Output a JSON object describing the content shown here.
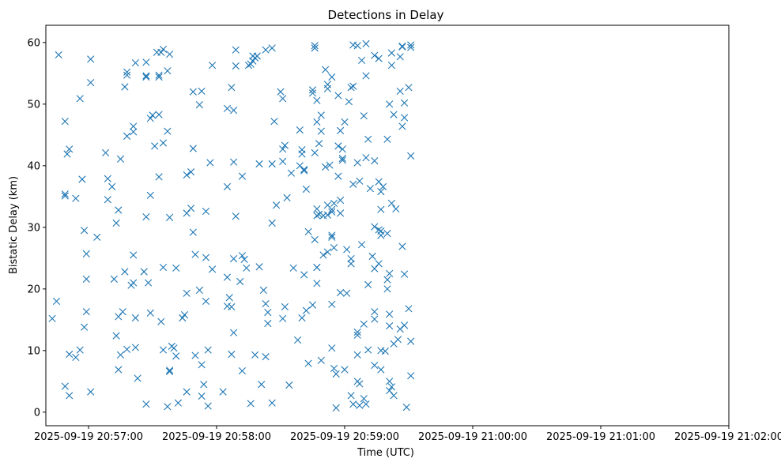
{
  "chart_data": {
    "type": "scatter",
    "title": "Detections in Delay",
    "xlabel": "Time (UTC)",
    "ylabel": "Bistatic Delay (km)",
    "x_tick_labels": [
      "2025-09-19 20:57:00",
      "2025-09-19 20:58:00",
      "2025-09-19 20:59:00",
      "2025-09-19 21:00:00",
      "2025-09-19 21:01:00",
      "2025-09-19 21:02:00"
    ],
    "x_ticks": [
      "20:57:00",
      "20:58:00",
      "20:59:00",
      "21:00:00",
      "21:01:00",
      "21:02:00"
    ],
    "xlim": [
      "20:56:40",
      "21:02:00"
    ],
    "y_ticks": [
      0,
      10,
      20,
      30,
      40,
      50,
      60
    ],
    "ylim": [
      -2.2,
      62.8
    ],
    "grid": false,
    "marker": "x",
    "color": "#1f77b4",
    "points": [
      [
        "20:56:43",
        15.2
      ],
      [
        "20:56:45",
        18.0
      ],
      [
        "20:56:46",
        58.0
      ],
      [
        "20:56:49",
        35.1
      ],
      [
        "20:56:49",
        35.4
      ],
      [
        "20:56:49",
        47.2
      ],
      [
        "20:56:49",
        4.2
      ],
      [
        "20:56:50",
        41.9
      ],
      [
        "20:56:51",
        2.7
      ],
      [
        "20:56:51",
        42.7
      ],
      [
        "20:56:51",
        9.4
      ],
      [
        "20:56:54",
        34.7
      ],
      [
        "20:56:54",
        8.9
      ],
      [
        "20:56:56",
        50.9
      ],
      [
        "20:56:56",
        10.1
      ],
      [
        "20:56:57",
        37.8
      ],
      [
        "20:56:58",
        29.5
      ],
      [
        "20:56:58",
        13.8
      ],
      [
        "20:56:59",
        16.3
      ],
      [
        "20:56:59",
        25.7
      ],
      [
        "20:56:59",
        21.6
      ],
      [
        "20:57:01",
        57.3
      ],
      [
        "20:57:01",
        53.5
      ],
      [
        "20:57:01",
        3.3
      ],
      [
        "20:57:04",
        28.4
      ],
      [
        "20:57:08",
        42.1
      ],
      [
        "20:57:09",
        34.5
      ],
      [
        "20:57:09",
        37.9
      ],
      [
        "20:57:11",
        36.6
      ],
      [
        "20:57:12",
        21.6
      ],
      [
        "20:57:13",
        12.4
      ],
      [
        "20:57:13",
        30.7
      ],
      [
        "20:57:14",
        6.9
      ],
      [
        "20:57:14",
        15.5
      ],
      [
        "20:57:14",
        32.8
      ],
      [
        "20:57:15",
        41.1
      ],
      [
        "20:57:15",
        9.3
      ],
      [
        "20:57:16",
        16.3
      ],
      [
        "20:57:17",
        22.8
      ],
      [
        "20:57:17",
        52.8
      ],
      [
        "20:57:18",
        54.7
      ],
      [
        "20:57:18",
        55.2
      ],
      [
        "20:57:18",
        44.8
      ],
      [
        "20:57:18",
        10.2
      ],
      [
        "20:57:20",
        20.6
      ],
      [
        "20:57:21",
        21.0
      ],
      [
        "20:57:21",
        25.5
      ],
      [
        "20:57:21",
        46.4
      ],
      [
        "20:57:21",
        45.5
      ],
      [
        "20:57:22",
        56.7
      ],
      [
        "20:57:22",
        15.3
      ],
      [
        "20:57:22",
        10.5
      ],
      [
        "20:57:23",
        5.5
      ],
      [
        "20:57:26",
        22.8
      ],
      [
        "20:57:27",
        56.8
      ],
      [
        "20:57:27",
        54.4
      ],
      [
        "20:57:27",
        54.6
      ],
      [
        "20:57:27",
        31.7
      ],
      [
        "20:57:27",
        1.3
      ],
      [
        "20:57:28",
        21.0
      ],
      [
        "20:57:29",
        16.1
      ],
      [
        "20:57:29",
        35.2
      ],
      [
        "20:57:29",
        47.7
      ],
      [
        "20:57:30",
        48.2
      ],
      [
        "20:57:31",
        43.2
      ],
      [
        "20:57:32",
        58.4
      ],
      [
        "20:57:33",
        54.7
      ],
      [
        "20:57:33",
        54.4
      ],
      [
        "20:57:33",
        48.3
      ],
      [
        "20:57:33",
        38.2
      ],
      [
        "20:57:34",
        14.7
      ],
      [
        "20:57:34",
        58.4
      ],
      [
        "20:57:35",
        58.9
      ],
      [
        "20:57:35",
        43.7
      ],
      [
        "20:57:35",
        23.5
      ],
      [
        "20:57:35",
        10.1
      ],
      [
        "20:57:37",
        55.4
      ],
      [
        "20:57:37",
        45.6
      ],
      [
        "20:57:38",
        58.1
      ],
      [
        "20:57:38",
        31.6
      ],
      [
        "20:57:37",
        0.9
      ],
      [
        "20:57:38",
        6.6
      ],
      [
        "20:57:38",
        6.8
      ],
      [
        "20:57:39",
        10.7
      ],
      [
        "20:57:40",
        10.4
      ],
      [
        "20:57:41",
        9.1
      ],
      [
        "20:57:41",
        23.4
      ],
      [
        "20:57:42",
        1.5
      ],
      [
        "20:57:44",
        15.3
      ],
      [
        "20:57:45",
        15.8
      ],
      [
        "20:57:46",
        32.3
      ],
      [
        "20:57:46",
        38.5
      ],
      [
        "20:57:46",
        19.3
      ],
      [
        "20:57:46",
        3.3
      ],
      [
        "20:57:48",
        33.1
      ],
      [
        "20:57:48",
        39.0
      ],
      [
        "20:57:49",
        52.0
      ],
      [
        "20:57:49",
        42.8
      ],
      [
        "20:57:49",
        29.2
      ],
      [
        "20:57:50",
        9.2
      ],
      [
        "20:57:50",
        25.6
      ],
      [
        "20:57:52",
        49.9
      ],
      [
        "20:57:52",
        19.8
      ],
      [
        "20:57:53",
        52.1
      ],
      [
        "20:57:53",
        7.7
      ],
      [
        "20:57:53",
        2.6
      ],
      [
        "20:57:54",
        4.5
      ],
      [
        "20:57:55",
        25.1
      ],
      [
        "20:57:55",
        32.6
      ],
      [
        "20:57:55",
        18.0
      ],
      [
        "20:57:56",
        10.1
      ],
      [
        "20:57:56",
        1.0
      ],
      [
        "20:57:57",
        40.5
      ],
      [
        "20:57:58",
        56.3
      ],
      [
        "20:57:58",
        23.2
      ],
      [
        "20:58:03",
        3.3
      ],
      [
        "20:58:05",
        17.2
      ],
      [
        "20:58:05",
        21.9
      ],
      [
        "20:58:05",
        36.6
      ],
      [
        "20:58:05",
        49.3
      ],
      [
        "20:58:06",
        18.6
      ],
      [
        "20:58:07",
        52.7
      ],
      [
        "20:58:07",
        17.1
      ],
      [
        "20:58:07",
        9.4
      ],
      [
        "20:58:08",
        40.6
      ],
      [
        "20:58:08",
        49.0
      ],
      [
        "20:58:08",
        24.9
      ],
      [
        "20:58:08",
        12.9
      ],
      [
        "20:58:09",
        58.8
      ],
      [
        "20:58:09",
        56.2
      ],
      [
        "20:58:09",
        31.8
      ],
      [
        "20:58:11",
        21.2
      ],
      [
        "20:58:12",
        6.7
      ],
      [
        "20:58:12",
        25.4
      ],
      [
        "20:58:12",
        38.3
      ],
      [
        "20:58:13",
        24.8
      ],
      [
        "20:58:14",
        23.4
      ],
      [
        "20:58:15",
        56.3
      ],
      [
        "20:58:16",
        56.5
      ],
      [
        "20:58:16",
        1.4
      ],
      [
        "20:58:17",
        57.8
      ],
      [
        "20:58:17",
        57.0
      ],
      [
        "20:58:18",
        57.5
      ],
      [
        "20:58:18",
        9.3
      ],
      [
        "20:58:19",
        57.8
      ],
      [
        "20:58:20",
        40.3
      ],
      [
        "20:58:20",
        23.6
      ],
      [
        "20:58:21",
        4.5
      ],
      [
        "20:58:22",
        19.8
      ],
      [
        "20:58:23",
        58.8
      ],
      [
        "20:58:23",
        17.6
      ],
      [
        "20:58:23",
        9.0
      ],
      [
        "20:58:24",
        14.4
      ],
      [
        "20:58:24",
        16.2
      ],
      [
        "20:58:26",
        59.1
      ],
      [
        "20:58:26",
        40.3
      ],
      [
        "20:58:26",
        30.7
      ],
      [
        "20:58:26",
        1.5
      ],
      [
        "20:58:27",
        47.2
      ],
      [
        "20:58:28",
        33.6
      ],
      [
        "20:58:30",
        52.0
      ],
      [
        "20:58:31",
        50.9
      ],
      [
        "20:58:31",
        42.7
      ],
      [
        "20:58:31",
        40.7
      ],
      [
        "20:58:31",
        15.2
      ],
      [
        "20:58:32",
        43.3
      ],
      [
        "20:58:32",
        17.1
      ],
      [
        "20:58:33",
        34.8
      ],
      [
        "20:58:34",
        4.4
      ],
      [
        "20:58:35",
        38.8
      ],
      [
        "20:58:36",
        23.4
      ],
      [
        "20:58:38",
        11.7
      ],
      [
        "20:58:39",
        40.0
      ],
      [
        "20:58:39",
        45.8
      ],
      [
        "20:58:40",
        42.6
      ],
      [
        "20:58:40",
        41.9
      ],
      [
        "20:58:40",
        15.3
      ],
      [
        "20:58:41",
        39.4
      ],
      [
        "20:58:41",
        39.2
      ],
      [
        "20:58:41",
        22.3
      ],
      [
        "20:58:42",
        16.5
      ],
      [
        "20:58:42",
        36.2
      ],
      [
        "20:58:43",
        29.3
      ],
      [
        "20:58:43",
        7.9
      ],
      [
        "20:58:45",
        17.4
      ],
      [
        "20:58:45",
        52.3
      ],
      [
        "20:58:45",
        51.8
      ],
      [
        "20:58:46",
        59.1
      ],
      [
        "20:58:46",
        42.1
      ],
      [
        "20:58:46",
        28.0
      ],
      [
        "20:58:46",
        59.5
      ],
      [
        "20:58:47",
        31.9
      ],
      [
        "20:58:47",
        33.0
      ],
      [
        "20:58:47",
        47.1
      ],
      [
        "20:58:47",
        50.6
      ],
      [
        "20:58:47",
        23.5
      ],
      [
        "20:58:47",
        23.5
      ],
      [
        "20:58:47",
        20.9
      ],
      [
        "20:58:48",
        43.6
      ],
      [
        "20:58:48",
        32.1
      ],
      [
        "20:58:49",
        8.4
      ],
      [
        "20:58:49",
        48.2
      ],
      [
        "20:58:49",
        45.6
      ],
      [
        "20:58:50",
        31.9
      ],
      [
        "20:58:50",
        25.5
      ],
      [
        "20:58:51",
        39.8
      ],
      [
        "20:58:51",
        55.6
      ],
      [
        "20:58:52",
        53.2
      ],
      [
        "20:58:52",
        52.5
      ],
      [
        "20:58:52",
        33.6
      ],
      [
        "20:58:52",
        26.0
      ],
      [
        "20:58:52",
        32.0
      ],
      [
        "20:58:53",
        40.1
      ],
      [
        "20:58:54",
        32.9
      ],
      [
        "20:58:54",
        32.5
      ],
      [
        "20:58:54",
        54.4
      ],
      [
        "20:58:54",
        28.7
      ],
      [
        "20:58:54",
        28.4
      ],
      [
        "20:58:54",
        17.5
      ],
      [
        "20:58:54",
        10.4
      ],
      [
        "20:58:55",
        26.7
      ],
      [
        "20:58:55",
        33.9
      ],
      [
        "20:58:55",
        7.1
      ],
      [
        "20:58:56",
        6.2
      ],
      [
        "20:58:56",
        0.7
      ],
      [
        "20:58:57",
        43.2
      ],
      [
        "20:58:57",
        38.3
      ],
      [
        "20:58:57",
        51.4
      ],
      [
        "20:58:58",
        34.4
      ],
      [
        "20:58:58",
        32.3
      ],
      [
        "20:58:58",
        19.4
      ],
      [
        "20:58:58",
        45.7
      ],
      [
        "20:58:59",
        42.7
      ],
      [
        "20:58:59",
        41.2
      ],
      [
        "20:58:59",
        40.9
      ],
      [
        "20:59:00",
        47.1
      ],
      [
        "20:59:00",
        6.9
      ],
      [
        "20:59:01",
        19.3
      ],
      [
        "20:59:01",
        26.4
      ],
      [
        "20:59:02",
        50.4
      ],
      [
        "20:59:03",
        24.9
      ],
      [
        "20:59:03",
        24.1
      ],
      [
        "20:59:03",
        2.7
      ],
      [
        "20:59:03",
        52.7
      ],
      [
        "20:59:04",
        59.6
      ],
      [
        "20:59:04",
        52.9
      ],
      [
        "20:59:04",
        37.0
      ],
      [
        "20:59:04",
        1.3
      ],
      [
        "20:59:06",
        59.5
      ],
      [
        "20:59:06",
        13.0
      ],
      [
        "20:59:06",
        5.0
      ],
      [
        "20:59:06",
        12.5
      ],
      [
        "20:59:06",
        9.3
      ],
      [
        "20:59:06",
        40.5
      ],
      [
        "20:59:07",
        4.6
      ],
      [
        "20:59:07",
        37.5
      ],
      [
        "20:59:07",
        1.1
      ],
      [
        "20:59:08",
        27.2
      ],
      [
        "20:59:08",
        57.1
      ],
      [
        "20:59:09",
        48.1
      ],
      [
        "20:59:09",
        2.2
      ],
      [
        "20:59:09",
        14.3
      ],
      [
        "20:59:10",
        59.8
      ],
      [
        "20:59:10",
        41.3
      ],
      [
        "20:59:10",
        54.6
      ],
      [
        "20:59:10",
        1.3
      ],
      [
        "20:59:11",
        20.7
      ],
      [
        "20:59:11",
        10.1
      ],
      [
        "20:59:11",
        44.3
      ],
      [
        "20:59:12",
        36.3
      ],
      [
        "20:59:13",
        25.3
      ],
      [
        "20:59:14",
        57.9
      ],
      [
        "20:59:14",
        40.8
      ],
      [
        "20:59:14",
        30.1
      ],
      [
        "20:59:14",
        23.3
      ],
      [
        "20:59:14",
        16.3
      ],
      [
        "20:59:14",
        15.1
      ],
      [
        "20:59:14",
        7.6
      ],
      [
        "20:59:16",
        57.4
      ],
      [
        "20:59:16",
        37.4
      ],
      [
        "20:59:16",
        29.6
      ],
      [
        "20:59:16",
        24.1
      ],
      [
        "20:59:17",
        35.8
      ],
      [
        "20:59:17",
        32.9
      ],
      [
        "20:59:17",
        29.4
      ],
      [
        "20:59:17",
        28.7
      ],
      [
        "20:59:17",
        10.0
      ],
      [
        "20:59:17",
        6.9
      ],
      [
        "20:59:18",
        36.6
      ],
      [
        "20:59:19",
        9.9
      ],
      [
        "20:59:20",
        44.3
      ],
      [
        "20:59:20",
        29.0
      ],
      [
        "20:59:20",
        21.5
      ],
      [
        "20:59:20",
        20.0
      ],
      [
        "20:59:21",
        50.0
      ],
      [
        "20:59:21",
        22.5
      ],
      [
        "20:59:21",
        15.9
      ],
      [
        "20:59:21",
        14.0
      ],
      [
        "20:59:21",
        5.0
      ],
      [
        "20:59:21",
        3.5
      ],
      [
        "20:59:22",
        4.1
      ],
      [
        "20:59:22",
        33.9
      ],
      [
        "20:59:22",
        58.3
      ],
      [
        "20:59:22",
        56.3
      ],
      [
        "20:59:23",
        48.3
      ],
      [
        "20:59:23",
        11.1
      ],
      [
        "20:59:23",
        2.7
      ],
      [
        "20:59:24",
        33.0
      ],
      [
        "20:59:25",
        11.8
      ],
      [
        "20:59:26",
        57.7
      ],
      [
        "20:59:26",
        52.1
      ],
      [
        "20:59:26",
        13.5
      ],
      [
        "20:59:27",
        59.4
      ],
      [
        "20:59:27",
        59.3
      ],
      [
        "20:59:27",
        26.9
      ],
      [
        "20:59:27",
        46.4
      ],
      [
        "20:59:28",
        47.8
      ],
      [
        "20:59:28",
        50.2
      ],
      [
        "20:59:28",
        22.4
      ],
      [
        "20:59:28",
        14.1
      ],
      [
        "20:59:29",
        0.8
      ],
      [
        "20:59:30",
        52.7
      ],
      [
        "20:59:30",
        16.8
      ],
      [
        "20:59:31",
        41.6
      ],
      [
        "20:59:31",
        59.2
      ],
      [
        "20:59:31",
        59.6
      ],
      [
        "20:59:31",
        11.5
      ],
      [
        "20:59:31",
        5.9
      ]
    ]
  }
}
